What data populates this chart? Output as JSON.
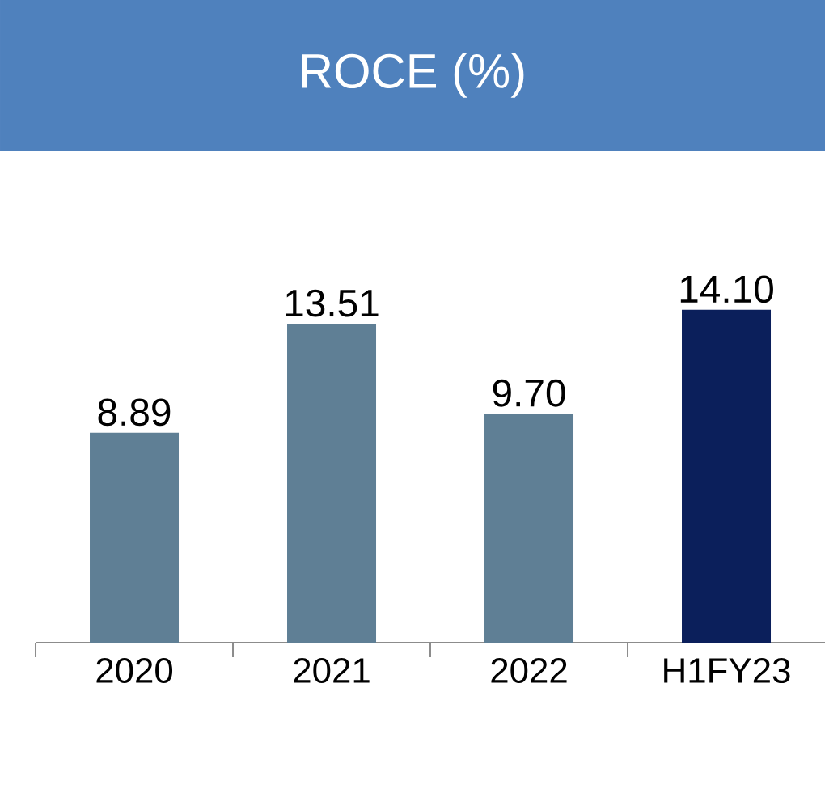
{
  "chart_data": {
    "type": "bar",
    "title": "ROCE (%)",
    "categories": [
      "2020",
      "2021",
      "2022",
      "H1FY23"
    ],
    "values": [
      8.89,
      13.51,
      9.7,
      14.1
    ],
    "colors": [
      "#5f7f95",
      "#5f7f95",
      "#5f7f95",
      "#0b1f5b"
    ],
    "value_labels": [
      "8.89",
      "13.51",
      "9.70",
      "14.10"
    ]
  }
}
